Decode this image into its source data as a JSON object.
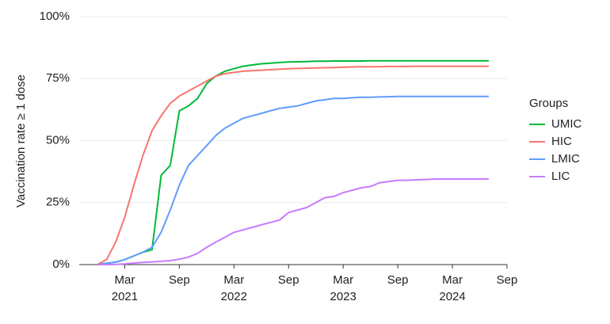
{
  "chart_data": {
    "type": "line",
    "y_label": "Vaccination rate ≥ 1 dose",
    "legend_title": "Groups",
    "legend": "right",
    "grid": true,
    "x": [
      "2020-12",
      "2021-01",
      "2021-02",
      "2021-03",
      "2021-04",
      "2021-05",
      "2021-06",
      "2021-07",
      "2021-08",
      "2021-09",
      "2021-10",
      "2021-11",
      "2021-12",
      "2022-01",
      "2022-02",
      "2022-03",
      "2022-04",
      "2022-05",
      "2022-06",
      "2022-07",
      "2022-08",
      "2022-09",
      "2022-10",
      "2022-11",
      "2022-12",
      "2023-01",
      "2023-02",
      "2023-03",
      "2023-04",
      "2023-05",
      "2023-06",
      "2023-07",
      "2023-08",
      "2023-09",
      "2023-10",
      "2023-11",
      "2023-12",
      "2024-01",
      "2024-02",
      "2024-03",
      "2024-04",
      "2024-05",
      "2024-06",
      "2024-07"
    ],
    "xlim": [
      "2020-10",
      "2024-09"
    ],
    "xticks": [
      {
        "value": "2021-03",
        "label": "Mar"
      },
      {
        "value": "2021-09",
        "label": "Sep"
      },
      {
        "value": "2022-03",
        "label": "Mar"
      },
      {
        "value": "2022-09",
        "label": "Sep"
      },
      {
        "value": "2023-03",
        "label": "Mar"
      },
      {
        "value": "2023-09",
        "label": "Sep"
      },
      {
        "value": "2024-03",
        "label": "Mar"
      },
      {
        "value": "2024-09",
        "label": "Sep"
      }
    ],
    "xtick_years": [
      "2021",
      null,
      "2022",
      null,
      "2023",
      null,
      "2024",
      null
    ],
    "ylim": [
      0,
      100
    ],
    "yticks": [
      {
        "value": 0,
        "label": "0%"
      },
      {
        "value": 25,
        "label": "25%"
      },
      {
        "value": 50,
        "label": "50%"
      },
      {
        "value": 75,
        "label": "75%"
      },
      {
        "value": 100,
        "label": "100%"
      }
    ],
    "series": [
      {
        "name": "UMIC",
        "color": "#00ba38",
        "values": [
          0,
          0.5,
          1,
          2,
          3.5,
          5,
          6,
          36,
          40,
          62,
          64,
          67,
          73,
          76,
          78,
          79,
          80,
          80.5,
          81,
          81.2,
          81.5,
          81.7,
          81.8,
          81.9,
          82,
          82,
          82.1,
          82.1,
          82.1,
          82.1,
          82.2,
          82.2,
          82.2,
          82.2,
          82.2,
          82.2,
          82.2,
          82.2,
          82.2,
          82.2,
          82.2,
          82.2,
          82.2,
          82.2
        ]
      },
      {
        "name": "HIC",
        "color": "#f8766d",
        "values": [
          0,
          2,
          9,
          19,
          32,
          44,
          54,
          60,
          65,
          68,
          70,
          72,
          74,
          76,
          77,
          77.5,
          78,
          78.2,
          78.4,
          78.6,
          78.8,
          79,
          79.1,
          79.2,
          79.3,
          79.4,
          79.5,
          79.6,
          79.7,
          79.8,
          79.8,
          79.8,
          79.9,
          79.9,
          79.9,
          80,
          80,
          80,
          80,
          80,
          80,
          80,
          80,
          80
        ]
      },
      {
        "name": "LMIC",
        "color": "#619cff",
        "values": [
          0,
          0.5,
          1,
          2,
          3.5,
          5,
          7,
          13,
          22,
          32,
          40,
          44,
          48,
          52,
          55,
          57,
          59,
          60,
          61,
          62,
          63,
          63.5,
          64,
          65,
          66,
          66.5,
          67,
          67,
          67.3,
          67.5,
          67.5,
          67.6,
          67.7,
          67.8,
          67.8,
          67.8,
          67.8,
          67.8,
          67.8,
          67.8,
          67.8,
          67.8,
          67.8,
          67.8
        ]
      },
      {
        "name": "LIC",
        "color": "#c77cff",
        "values": [
          0,
          0,
          0.1,
          0.3,
          0.6,
          0.9,
          1.1,
          1.3,
          1.6,
          2.2,
          3,
          4.5,
          7,
          9,
          11,
          13,
          14,
          15,
          16,
          17,
          18,
          21,
          22,
          23,
          25,
          27,
          27.5,
          29,
          30,
          31,
          31.5,
          33,
          33.5,
          34,
          34,
          34.2,
          34.3,
          34.5,
          34.5,
          34.5,
          34.5,
          34.5,
          34.5,
          34.5
        ]
      }
    ]
  }
}
